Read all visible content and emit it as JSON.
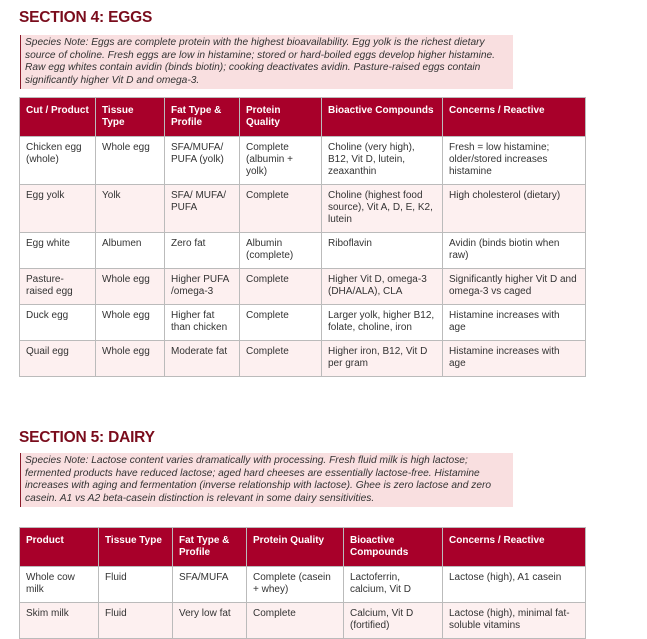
{
  "sections": [
    {
      "title": "SECTION 4: EGGS",
      "note": "Species Note: Eggs are complete protein with the highest bioavailability. Egg yolk is the richest dietary source of choline. Fresh eggs are low in histamine; stored or hard-boiled eggs develop higher histamine. Raw egg whites contain avidin (binds biotin); cooking deactivates avidin. Pasture-raised eggs contain significantly higher Vit D and omega-3.",
      "headers": [
        "Cut / Product",
        "Tissue Type",
        "Fat Type & Profile",
        "Protein Quality",
        "Bioactive Compounds",
        "Concerns / Reactive"
      ],
      "rows": [
        [
          "Chicken egg (whole)",
          "Whole egg",
          "SFA/MUFA/ PUFA (yolk)",
          "Complete (albumin + yolk)",
          "Choline (very high), B12, Vit D, lutein, zeaxanthin",
          "Fresh = low histamine; older/stored increases histamine"
        ],
        [
          "Egg yolk",
          "Yolk",
          "SFA/ MUFA/ PUFA",
          "Complete",
          "Choline (highest food source), Vit A, D, E, K2, lutein",
          "High cholesterol (dietary)"
        ],
        [
          "Egg white",
          "Albumen",
          "Zero fat",
          "Albumin (complete)",
          "Riboflavin",
          "Avidin (binds biotin when raw)"
        ],
        [
          "Pasture-raised egg",
          "Whole egg",
          "Higher PUFA /omega-3",
          "Complete",
          "Higher Vit D, omega-3 (DHA/ALA), CLA",
          "Significantly higher Vit D and omega-3 vs caged"
        ],
        [
          "Duck egg",
          "Whole egg",
          "Higher fat than chicken",
          "Complete",
          "Larger yolk, higher B12, folate, choline, iron",
          "Histamine increases with age"
        ],
        [
          "Quail egg",
          "Whole egg",
          "Moderate fat",
          "Complete",
          "Higher iron, B12, Vit D per gram",
          "Histamine increases with age"
        ]
      ]
    },
    {
      "title": "SECTION 5: DAIRY",
      "note": "Species Note: Lactose content varies dramatically with processing. Fresh fluid milk is high lactose; fermented products have reduced lactose; aged hard cheeses are essentially lactose-free. Histamine increases with aging and fermentation (inverse relationship with lactose). Ghee is zero lactose and zero casein. A1 vs A2 beta-casein distinction is relevant in some dairy sensitivities.",
      "headers": [
        "Product",
        "Tissue Type",
        "Fat Type & Profile",
        "Protein Quality",
        "Bioactive Compounds",
        "Concerns / Reactive"
      ],
      "rows": [
        [
          "Whole cow milk",
          "Fluid",
          "SFA/MUFA",
          "Complete (casein + whey)",
          "Lactoferrin, calcium, Vit D",
          "Lactose (high), A1 casein"
        ],
        [
          "Skim milk",
          "Fluid",
          "Very low fat",
          "Complete",
          "Calcium, Vit D (fortified)",
          "Lactose (high), minimal fat-soluble vitamins"
        ]
      ]
    }
  ]
}
